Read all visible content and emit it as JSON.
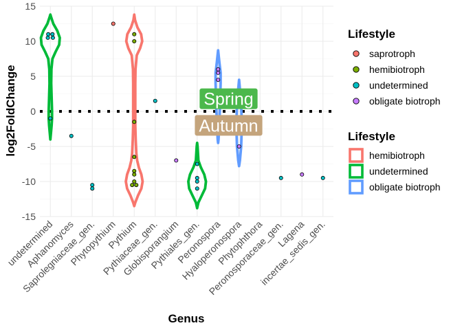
{
  "chart_data": {
    "type": "violin",
    "xlabel": "Genus",
    "ylabel": "log2FoldChange",
    "ylim": [
      -15,
      15
    ],
    "yticks": [
      -15,
      -10,
      -5,
      0,
      5,
      10,
      15
    ],
    "reference_line_y": 0,
    "categories": [
      "undetermined",
      "Aphanomyces",
      "Saprolegniaceae_gen.",
      "Phytopythium",
      "Pythium",
      "Pythiaceae_gen.",
      "Globisporangium",
      "Pythiales_gen.",
      "Peronospora",
      "Hyaloperonospora",
      "Phytophthora",
      "Peronosporaceae_gen.",
      "Lagena",
      "incertae_sedis_gen."
    ],
    "fill_legend": {
      "title": "Lifestyle",
      "items": [
        {
          "label": "saprotroph",
          "color": "#F8766D"
        },
        {
          "label": "hemibiotroph",
          "color": "#7CAE00"
        },
        {
          "label": "undetermined",
          "color": "#00BFC4"
        },
        {
          "label": "obligate biotroph",
          "color": "#C77CFF"
        }
      ]
    },
    "color_legend": {
      "title": "Lifestyle",
      "items": [
        {
          "label": "hemibiotroph",
          "color": "#F8766D"
        },
        {
          "label": "undetermined",
          "color": "#00BA38"
        },
        {
          "label": "obligate biotroph",
          "color": "#619CFF"
        }
      ]
    },
    "violins": [
      {
        "category": "undetermined",
        "lifestyle": "undetermined",
        "color": "#00BA38",
        "max_halfwidth": 0.45,
        "profile": [
          [
            -4,
            0
          ],
          [
            -3,
            0.03
          ],
          [
            -2,
            0.06
          ],
          [
            -1,
            0.08
          ],
          [
            0,
            0.08
          ],
          [
            2,
            0.06
          ],
          [
            4,
            0.04
          ],
          [
            6,
            0.05
          ],
          [
            7.5,
            0.1
          ],
          [
            8.5,
            0.25
          ],
          [
            9.5,
            0.42
          ],
          [
            10.5,
            0.45
          ],
          [
            11.5,
            0.33
          ],
          [
            12.5,
            0.14
          ],
          [
            13.5,
            0.03
          ],
          [
            13.8,
            0
          ]
        ]
      },
      {
        "category": "Pythium",
        "lifestyle": "hemibiotroph",
        "color": "#F8766D",
        "max_halfwidth": 0.4,
        "profile": [
          [
            -13.5,
            0
          ],
          [
            -13,
            0.05
          ],
          [
            -12,
            0.18
          ],
          [
            -11,
            0.34
          ],
          [
            -10,
            0.4
          ],
          [
            -9,
            0.34
          ],
          [
            -8,
            0.22
          ],
          [
            -7,
            0.14
          ],
          [
            -6,
            0.1
          ],
          [
            -4,
            0.07
          ],
          [
            -2,
            0.05
          ],
          [
            0,
            0.05
          ],
          [
            2,
            0.05
          ],
          [
            4,
            0.05
          ],
          [
            6,
            0.06
          ],
          [
            8,
            0.12
          ],
          [
            9,
            0.28
          ],
          [
            10,
            0.38
          ],
          [
            11,
            0.33
          ],
          [
            12,
            0.15
          ],
          [
            13,
            0.04
          ],
          [
            13.8,
            0
          ]
        ]
      },
      {
        "category": "Pythiales_gen.",
        "lifestyle": "undetermined",
        "color": "#00BA38",
        "max_halfwidth": 0.42,
        "profile": [
          [
            -13.8,
            0
          ],
          [
            -13,
            0.06
          ],
          [
            -12,
            0.22
          ],
          [
            -11,
            0.38
          ],
          [
            -10,
            0.42
          ],
          [
            -9,
            0.34
          ],
          [
            -8,
            0.18
          ],
          [
            -7,
            0.06
          ],
          [
            -6,
            0.04
          ],
          [
            -5,
            0.02
          ],
          [
            -4.5,
            0
          ]
        ]
      },
      {
        "category": "Peronospora",
        "lifestyle": "obligate biotroph",
        "color": "#619CFF",
        "max_halfwidth": 0.12,
        "profile": [
          [
            -4.5,
            0
          ],
          [
            -4,
            0.02
          ],
          [
            -2,
            0.05
          ],
          [
            0,
            0.08
          ],
          [
            2,
            0.1
          ],
          [
            4,
            0.12
          ],
          [
            5.5,
            0.12
          ],
          [
            7,
            0.06
          ],
          [
            8.7,
            0
          ]
        ]
      },
      {
        "category": "Hyaloperonospora",
        "lifestyle": "obligate biotroph",
        "color": "#619CFF",
        "max_halfwidth": 0.12,
        "profile": [
          [
            -7.8,
            0
          ],
          [
            -7,
            0.04
          ],
          [
            -5,
            0.1
          ],
          [
            -3,
            0.12
          ],
          [
            -1,
            0.12
          ],
          [
            1,
            0.1
          ],
          [
            2.5,
            0.06
          ],
          [
            4.5,
            0
          ]
        ]
      }
    ],
    "points": [
      {
        "category": "undetermined",
        "y": 11.0,
        "dx": -0.1,
        "lifestyle": "undetermined"
      },
      {
        "category": "undetermined",
        "y": 11.0,
        "dx": 0.1,
        "lifestyle": "undetermined"
      },
      {
        "category": "undetermined",
        "y": 10.5,
        "dx": -0.12,
        "lifestyle": "undetermined"
      },
      {
        "category": "undetermined",
        "y": 10.5,
        "dx": 0.12,
        "lifestyle": "undetermined"
      },
      {
        "category": "undetermined",
        "y": -1.0,
        "dx": 0,
        "lifestyle": "undetermined"
      },
      {
        "category": "Aphanomyces",
        "y": -3.5,
        "dx": 0,
        "lifestyle": "undetermined"
      },
      {
        "category": "Saprolegniaceae_gen.",
        "y": -10.5,
        "dx": 0,
        "lifestyle": "undetermined"
      },
      {
        "category": "Saprolegniaceae_gen.",
        "y": -11.0,
        "dx": 0,
        "lifestyle": "undetermined"
      },
      {
        "category": "Phytopythium",
        "y": 12.5,
        "dx": 0,
        "lifestyle": "saprotroph"
      },
      {
        "category": "Pythium",
        "y": 11.0,
        "dx": 0,
        "lifestyle": "hemibiotroph"
      },
      {
        "category": "Pythium",
        "y": 10.0,
        "dx": 0,
        "lifestyle": "hemibiotroph"
      },
      {
        "category": "Pythium",
        "y": -1.5,
        "dx": 0,
        "lifestyle": "hemibiotroph"
      },
      {
        "category": "Pythium",
        "y": -6.5,
        "dx": 0,
        "lifestyle": "hemibiotroph"
      },
      {
        "category": "Pythium",
        "y": -8.5,
        "dx": 0,
        "lifestyle": "hemibiotroph"
      },
      {
        "category": "Pythium",
        "y": -9.0,
        "dx": 0,
        "lifestyle": "hemibiotroph"
      },
      {
        "category": "Pythium",
        "y": -10.0,
        "dx": 0,
        "lifestyle": "hemibiotroph"
      },
      {
        "category": "Pythium",
        "y": -10.5,
        "dx": -0.1,
        "lifestyle": "hemibiotroph"
      },
      {
        "category": "Pythium",
        "y": -10.5,
        "dx": 0.1,
        "lifestyle": "hemibiotroph"
      },
      {
        "category": "Pythiaceae_gen.",
        "y": 1.5,
        "dx": 0,
        "lifestyle": "undetermined"
      },
      {
        "category": "Globisporangium",
        "y": -7.0,
        "dx": 0,
        "lifestyle": "obligate biotroph"
      },
      {
        "category": "Pythiales_gen.",
        "y": -7.5,
        "dx": 0,
        "lifestyle": "undetermined"
      },
      {
        "category": "Pythiales_gen.",
        "y": -9.5,
        "dx": 0,
        "lifestyle": "undetermined"
      },
      {
        "category": "Pythiales_gen.",
        "y": -10.0,
        "dx": 0,
        "lifestyle": "undetermined"
      },
      {
        "category": "Pythiales_gen.",
        "y": -11.0,
        "dx": 0,
        "lifestyle": "undetermined"
      },
      {
        "category": "Peronospora",
        "y": 6.0,
        "dx": 0,
        "lifestyle": "obligate biotroph"
      },
      {
        "category": "Peronospora",
        "y": 5.5,
        "dx": 0,
        "lifestyle": "obligate biotroph"
      },
      {
        "category": "Peronospora",
        "y": 4.5,
        "dx": 0,
        "lifestyle": "obligate biotroph"
      },
      {
        "category": "Hyaloperonospora",
        "y": -5.0,
        "dx": 0,
        "lifestyle": "obligate biotroph"
      },
      {
        "category": "Peronosporaceae_gen.",
        "y": -9.5,
        "dx": 0,
        "lifestyle": "undetermined"
      },
      {
        "category": "Lagena",
        "y": -9.0,
        "dx": 0,
        "lifestyle": "obligate biotroph"
      },
      {
        "category": "incertae_sedis_gen.",
        "y": -9.5,
        "dx": 0,
        "lifestyle": "undetermined"
      }
    ],
    "annotations": [
      {
        "text": "Spring",
        "x_category": "Peronospora",
        "x_offset": 0.5,
        "y": 1.8,
        "fill": "#4CB84C"
      },
      {
        "text": "Autumn",
        "x_category": "Peronospora",
        "x_offset": 0.5,
        "y": -2.0,
        "fill": "#C4A47C"
      }
    ]
  }
}
